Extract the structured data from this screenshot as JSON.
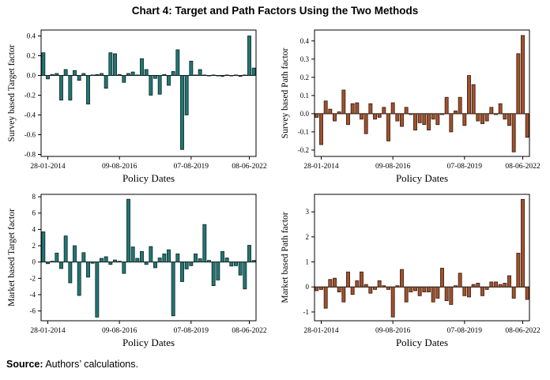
{
  "title": "Chart 4: Target and Path Factors Using the Two Methods",
  "footer": {
    "source_label": "Source:",
    "source_text": " Authors’ calculations."
  },
  "colors": {
    "teal_fill": "#1E7876",
    "teal_edge": "#142120",
    "brown_fill": "#A0522D",
    "brown_edge": "#33180B",
    "axis": "#000000"
  },
  "chart_data": [
    {
      "type": "bar",
      "panel": "survey-target",
      "ylabel": "Survey based Target factor",
      "xlabel": "Policy Dates",
      "x_tick_labels": [
        "28-01-2014",
        "09-08-2016",
        "07-08-2019",
        "08-06-2022"
      ],
      "x_tick_indices": [
        1,
        17,
        33,
        46
      ],
      "yticks": [
        "0.4",
        "0.2",
        "0.0",
        "-0.2",
        "-0.4",
        "-0.6",
        "-0.8"
      ],
      "ylim": [
        -0.82,
        0.46
      ],
      "bar_fill": "#1E7876",
      "bar_edge": "#142120",
      "values": [
        0.23,
        -0.035,
        0.01,
        0.02,
        -0.25,
        0.06,
        -0.25,
        0.05,
        -0.05,
        0.02,
        -0.29,
        0.005,
        0.01,
        0.02,
        -0.13,
        0.23,
        0.22,
        0.01,
        -0.07,
        0.02,
        0.035,
        0.005,
        0.17,
        0.06,
        -0.2,
        -0.03,
        -0.19,
        0.01,
        -0.1,
        0.04,
        0.26,
        -0.75,
        -0.4,
        0.145,
        0.005,
        0.06,
        0.005,
        -0.005,
        0.005,
        -0.005,
        -0.01,
        0.005,
        -0.005,
        0.005,
        -0.01,
        0.005,
        0.4,
        0.075
      ]
    },
    {
      "type": "bar",
      "panel": "survey-path",
      "ylabel": "Survey based Path factor",
      "xlabel": "Policy Dates",
      "x_tick_labels": [
        "28-01-2014",
        "09-08-2016",
        "07-08-2019",
        "08-06-2022"
      ],
      "x_tick_indices": [
        1,
        17,
        33,
        46
      ],
      "yticks": [
        "0.4",
        "0.3",
        "0.2",
        "0.1",
        "0.0",
        "-0.1",
        "-0.2"
      ],
      "ylim": [
        -0.235,
        0.46
      ],
      "bar_fill": "#A0522D",
      "bar_edge": "#33180B",
      "values": [
        -0.02,
        -0.17,
        0.07,
        0.025,
        -0.04,
        0.01,
        0.13,
        -0.06,
        0.055,
        0.06,
        -0.03,
        -0.11,
        0.055,
        -0.03,
        -0.02,
        0.035,
        -0.15,
        0.06,
        -0.04,
        -0.07,
        0.035,
        -0.005,
        -0.09,
        -0.05,
        -0.06,
        -0.09,
        -0.03,
        -0.06,
        -0.005,
        0.09,
        -0.1,
        0.015,
        0.09,
        -0.065,
        0.21,
        0.16,
        -0.04,
        -0.055,
        -0.04,
        0.035,
        -0.005,
        0.055,
        -0.03,
        -0.065,
        -0.21,
        0.33,
        0.43,
        -0.13
      ]
    },
    {
      "type": "bar",
      "panel": "market-target",
      "ylabel": "Market based Target factor",
      "xlabel": "Policy Dates",
      "x_tick_labels": [
        "28-01-2014",
        "09-08-2016",
        "07-08-2019",
        "08-06-2022"
      ],
      "x_tick_indices": [
        1,
        17,
        33,
        46
      ],
      "yticks": [
        "8",
        "6",
        "4",
        "2",
        "0",
        "-2",
        "-4",
        "-6"
      ],
      "ylim": [
        -7.2,
        8.3
      ],
      "bar_fill": "#1E7876",
      "bar_edge": "#142120",
      "values": [
        3.7,
        -0.2,
        0.1,
        1.1,
        -0.8,
        3.2,
        -2.55,
        2.0,
        -4.1,
        1.15,
        -1.85,
        -0.15,
        -6.75,
        0.45,
        0.65,
        -0.3,
        0.25,
        0.1,
        -1.4,
        7.7,
        1.85,
        0.45,
        1.3,
        -0.3,
        1.9,
        -0.7,
        0.5,
        1.0,
        1.5,
        -6.6,
        1.0,
        -2.4,
        -0.85,
        -0.45,
        1.0,
        0.4,
        4.6,
        0.2,
        -2.9,
        -2.2,
        1.3,
        0.5,
        -0.5,
        -0.45,
        -1.6,
        -3.3,
        2.05,
        0.2
      ]
    },
    {
      "type": "bar",
      "panel": "market-path",
      "ylabel": "Market based Path factor",
      "xlabel": "Policy Dates",
      "x_tick_labels": [
        "28-01-2014",
        "09-08-2016",
        "07-08-2019",
        "08-06-2022"
      ],
      "x_tick_indices": [
        1,
        17,
        33,
        46
      ],
      "yticks": [
        "3",
        "2",
        "1",
        "0",
        "-1"
      ],
      "ylim": [
        -1.35,
        3.7
      ],
      "bar_fill": "#A0522D",
      "bar_edge": "#33180B",
      "values": [
        -0.15,
        -0.1,
        -0.85,
        0.3,
        0.35,
        -0.2,
        -0.6,
        0.6,
        -0.3,
        0.25,
        0.6,
        0.1,
        -0.25,
        -0.1,
        0.25,
        0.05,
        -0.1,
        -1.2,
        0.05,
        0.7,
        -0.6,
        -0.2,
        -0.15,
        -0.35,
        -0.2,
        -0.2,
        -0.6,
        -0.45,
        0.75,
        -0.55,
        -0.7,
        0.05,
        0.55,
        -0.35,
        -0.4,
        0.1,
        0.15,
        -0.35,
        -0.1,
        0.2,
        0.2,
        0.1,
        0.15,
        0.45,
        -0.45,
        1.35,
        3.5,
        -0.5
      ]
    }
  ]
}
